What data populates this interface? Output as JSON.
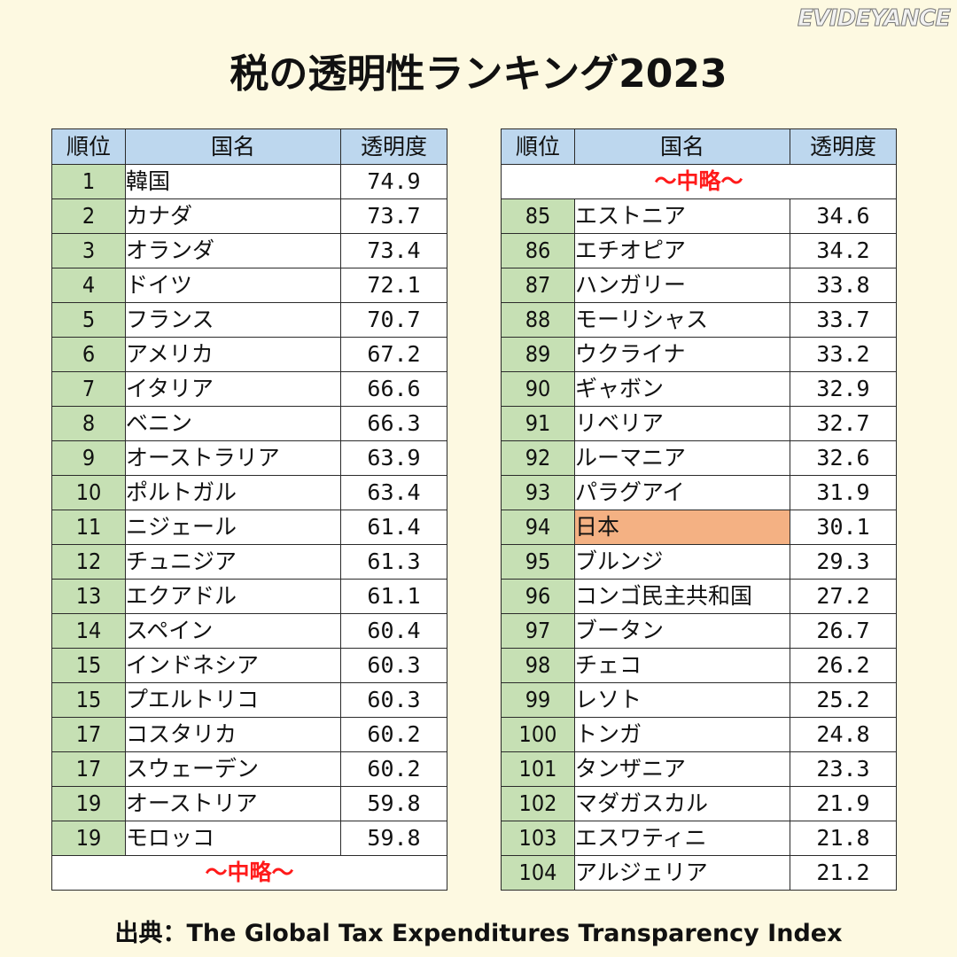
{
  "brand": "EVIDEYANCE",
  "title": "税の透明性ランキング2023",
  "source": "出典：The Global Tax Expenditures Transparency Index",
  "colors": {
    "background": "#fdf9e1",
    "header": "#bdd7ee",
    "rank_cell": "#c6e0b4",
    "highlight": "#f4b183",
    "omitted_text": "#ff1a1a"
  },
  "chart_data": [
    {
      "type": "table",
      "columns": [
        "順位",
        "国名",
        "透明度"
      ],
      "rows": [
        {
          "rank": "1",
          "country": "韓国",
          "score": "74.9"
        },
        {
          "rank": "2",
          "country": "カナダ",
          "score": "73.7"
        },
        {
          "rank": "3",
          "country": "オランダ",
          "score": "73.4"
        },
        {
          "rank": "4",
          "country": "ドイツ",
          "score": "72.1"
        },
        {
          "rank": "5",
          "country": "フランス",
          "score": "70.7"
        },
        {
          "rank": "6",
          "country": "アメリカ",
          "score": "67.2"
        },
        {
          "rank": "7",
          "country": "イタリア",
          "score": "66.6"
        },
        {
          "rank": "8",
          "country": "ベニン",
          "score": "66.3"
        },
        {
          "rank": "9",
          "country": "オーストラリア",
          "score": "63.9"
        },
        {
          "rank": "10",
          "country": "ポルトガル",
          "score": "63.4"
        },
        {
          "rank": "11",
          "country": "ニジェール",
          "score": "61.4"
        },
        {
          "rank": "12",
          "country": "チュニジア",
          "score": "61.3"
        },
        {
          "rank": "13",
          "country": "エクアドル",
          "score": "61.1"
        },
        {
          "rank": "14",
          "country": "スペイン",
          "score": "60.4"
        },
        {
          "rank": "15",
          "country": "インドネシア",
          "score": "60.3"
        },
        {
          "rank": "15",
          "country": "プエルトリコ",
          "score": "60.3"
        },
        {
          "rank": "17",
          "country": "コスタリカ",
          "score": "60.2"
        },
        {
          "rank": "17",
          "country": "スウェーデン",
          "score": "60.2"
        },
        {
          "rank": "19",
          "country": "オーストリア",
          "score": "59.8"
        },
        {
          "rank": "19",
          "country": "モロッコ",
          "score": "59.8"
        }
      ],
      "omitted_bottom": "～中略～"
    },
    {
      "type": "table",
      "columns": [
        "順位",
        "国名",
        "透明度"
      ],
      "omitted_top": "～中略～",
      "rows": [
        {
          "rank": "85",
          "country": "エストニア",
          "score": "34.6"
        },
        {
          "rank": "86",
          "country": "エチオピア",
          "score": "34.2"
        },
        {
          "rank": "87",
          "country": "ハンガリー",
          "score": "33.8"
        },
        {
          "rank": "88",
          "country": "モーリシャス",
          "score": "33.7"
        },
        {
          "rank": "89",
          "country": "ウクライナ",
          "score": "33.2"
        },
        {
          "rank": "90",
          "country": "ギャボン",
          "score": "32.9"
        },
        {
          "rank": "91",
          "country": "リベリア",
          "score": "32.7"
        },
        {
          "rank": "92",
          "country": "ルーマニア",
          "score": "32.6"
        },
        {
          "rank": "93",
          "country": "パラグアイ",
          "score": "31.9"
        },
        {
          "rank": "94",
          "country": "日本",
          "score": "30.1",
          "highlight": true
        },
        {
          "rank": "95",
          "country": "ブルンジ",
          "score": "29.3"
        },
        {
          "rank": "96",
          "country": "コンゴ民主共和国",
          "score": "27.2"
        },
        {
          "rank": "97",
          "country": "ブータン",
          "score": "26.7"
        },
        {
          "rank": "98",
          "country": "チェコ",
          "score": "26.2"
        },
        {
          "rank": "99",
          "country": "レソト",
          "score": "25.2"
        },
        {
          "rank": "100",
          "country": "トンガ",
          "score": "24.8"
        },
        {
          "rank": "101",
          "country": "タンザニア",
          "score": "23.3"
        },
        {
          "rank": "102",
          "country": "マダガスカル",
          "score": "21.9"
        },
        {
          "rank": "103",
          "country": "エスワティニ",
          "score": "21.8"
        },
        {
          "rank": "104",
          "country": "アルジェリア",
          "score": "21.2"
        }
      ]
    }
  ]
}
